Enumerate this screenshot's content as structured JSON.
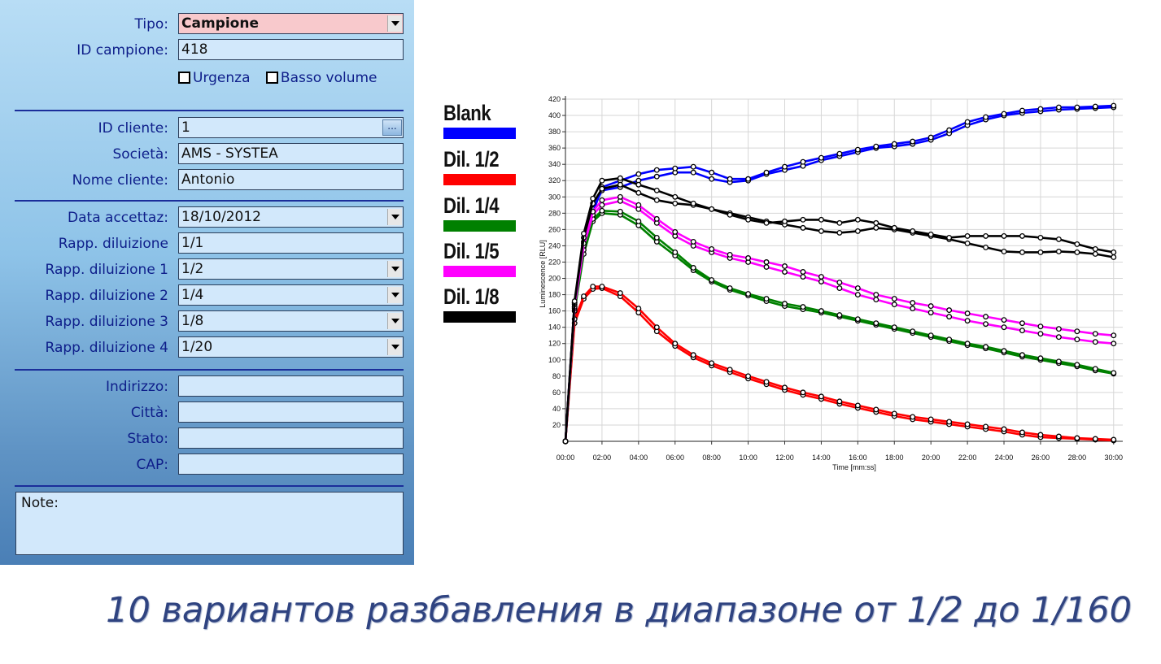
{
  "form": {
    "tipo": {
      "label": "Tipo:",
      "value": "Campione"
    },
    "id_campione": {
      "label": "ID campione:",
      "value": "418"
    },
    "checkboxes": {
      "urgenza": "Urgenza",
      "basso_volume": "Basso volume"
    },
    "id_cliente": {
      "label": "ID cliente:",
      "value": "1",
      "button": "..."
    },
    "societa": {
      "label": "Società:",
      "value": "AMS - SYSTEA"
    },
    "nome_cliente": {
      "label": "Nome cliente:",
      "value": "Antonio"
    },
    "data_accettaz": {
      "label": "Data accettaz:",
      "value": "18/10/2012"
    },
    "rapp_diluizione": {
      "label": "Rapp. diluizione",
      "value": "1/1"
    },
    "rapp_diluizione_1": {
      "label": "Rapp. diluizione 1",
      "value": "1/2"
    },
    "rapp_diluizione_2": {
      "label": "Rapp. diluizione 2",
      "value": "1/4"
    },
    "rapp_diluizione_3": {
      "label": "Rapp. diluizione 3",
      "value": "1/8"
    },
    "rapp_diluizione_4": {
      "label": "Rapp. diluizione 4",
      "value": "1/20"
    },
    "indirizzo": {
      "label": "Indirizzo:",
      "value": ""
    },
    "citta": {
      "label": "Città:",
      "value": ""
    },
    "stato": {
      "label": "Stato:",
      "value": ""
    },
    "cap": {
      "label": "CAP:",
      "value": ""
    },
    "note": {
      "label": "Note:"
    }
  },
  "legend": [
    {
      "label": "Blank",
      "color": "#0000ff"
    },
    {
      "label": "Dil. 1/2",
      "color": "#ff0000"
    },
    {
      "label": "Dil. 1/4",
      "color": "#008000"
    },
    {
      "label": "Dil. 1/5",
      "color": "#ff00ff"
    },
    {
      "label": "Dil. 1/8",
      "color": "#000000"
    }
  ],
  "caption": "10 вариантов разбавления в диапазоне от 1/2 до 1/160",
  "chart_data": {
    "type": "line",
    "xlabel": "Time [mm:ss]",
    "ylabel": "Luminescence [RLU]",
    "xlim": [
      0,
      30.5
    ],
    "ylim": [
      0,
      420
    ],
    "x_ticks": [
      "00:00",
      "02:00",
      "04:00",
      "06:00",
      "08:00",
      "10:00",
      "12:00",
      "14:00",
      "16:00",
      "18:00",
      "20:00",
      "22:00",
      "24:00",
      "26:00",
      "28:00",
      "30:00"
    ],
    "y_ticks": [
      20,
      40,
      60,
      80,
      100,
      120,
      140,
      160,
      180,
      200,
      220,
      240,
      260,
      280,
      300,
      320,
      340,
      360,
      380,
      400,
      420
    ],
    "grid": true,
    "series": [
      {
        "name": "Blank",
        "color": "#0000ff",
        "x": [
          0,
          0.5,
          1,
          1.5,
          2,
          3,
          4,
          5,
          6,
          7,
          8,
          9,
          10,
          11,
          12,
          13,
          14,
          15,
          16,
          17,
          18,
          19,
          20,
          21,
          22,
          23,
          24,
          25,
          26,
          27,
          28,
          29,
          30
        ],
        "y": [
          0,
          170,
          245,
          285,
          308,
          312,
          320,
          325,
          330,
          330,
          322,
          318,
          320,
          328,
          333,
          338,
          345,
          350,
          355,
          360,
          362,
          365,
          370,
          378,
          388,
          395,
          400,
          403,
          405,
          407,
          408,
          409,
          410
        ]
      },
      {
        "name": "Blank",
        "color": "#0000ff",
        "x": [
          0,
          0.5,
          1,
          1.5,
          2,
          3,
          4,
          5,
          6,
          7,
          8,
          9,
          10,
          11,
          12,
          13,
          14,
          15,
          16,
          17,
          18,
          19,
          20,
          21,
          22,
          23,
          24,
          25,
          26,
          27,
          28,
          29,
          30
        ],
        "y": [
          0,
          165,
          240,
          280,
          312,
          320,
          328,
          333,
          335,
          337,
          330,
          322,
          322,
          330,
          337,
          343,
          348,
          353,
          358,
          362,
          365,
          368,
          373,
          382,
          392,
          398,
          402,
          406,
          408,
          410,
          410,
          411,
          412
        ]
      },
      {
        "name": "Dil. 1/2",
        "color": "#ff0000",
        "x": [
          0,
          0.5,
          1,
          1.5,
          2,
          3,
          4,
          5,
          6,
          7,
          8,
          9,
          10,
          11,
          12,
          13,
          14,
          15,
          16,
          17,
          18,
          19,
          20,
          21,
          22,
          23,
          24,
          25,
          26,
          27,
          28,
          29,
          30
        ],
        "y": [
          0,
          145,
          175,
          187,
          188,
          178,
          158,
          135,
          117,
          103,
          93,
          85,
          77,
          70,
          63,
          57,
          52,
          46,
          41,
          36,
          31,
          27,
          24,
          21,
          18,
          15,
          12,
          8,
          5,
          4,
          3,
          2,
          1
        ]
      },
      {
        "name": "Dil. 1/2",
        "color": "#ff0000",
        "x": [
          0,
          0.5,
          1,
          1.5,
          2,
          3,
          4,
          5,
          6,
          7,
          8,
          9,
          10,
          11,
          12,
          13,
          14,
          15,
          16,
          17,
          18,
          19,
          20,
          21,
          22,
          23,
          24,
          25,
          26,
          27,
          28,
          29,
          30
        ],
        "y": [
          0,
          150,
          178,
          190,
          190,
          182,
          163,
          140,
          120,
          106,
          96,
          88,
          80,
          73,
          66,
          60,
          55,
          49,
          44,
          39,
          34,
          30,
          27,
          24,
          21,
          18,
          15,
          11,
          8,
          6,
          4,
          3,
          2
        ]
      },
      {
        "name": "Dil. 1/4",
        "color": "#008000",
        "x": [
          0,
          0.5,
          1,
          1.5,
          2,
          3,
          4,
          5,
          6,
          7,
          8,
          9,
          10,
          11,
          12,
          13,
          14,
          15,
          16,
          17,
          18,
          19,
          20,
          21,
          22,
          23,
          24,
          25,
          26,
          27,
          28,
          29,
          30
        ],
        "y": [
          0,
          160,
          230,
          270,
          280,
          278,
          265,
          245,
          228,
          210,
          196,
          186,
          179,
          172,
          166,
          162,
          158,
          153,
          148,
          143,
          138,
          133,
          128,
          123,
          118,
          114,
          109,
          104,
          100,
          96,
          92,
          87,
          83
        ]
      },
      {
        "name": "Dil. 1/4",
        "color": "#008000",
        "x": [
          0,
          0.5,
          1,
          1.5,
          2,
          3,
          4,
          5,
          6,
          7,
          8,
          9,
          10,
          11,
          12,
          13,
          14,
          15,
          16,
          17,
          18,
          19,
          20,
          21,
          22,
          23,
          24,
          25,
          26,
          27,
          28,
          29,
          30
        ],
        "y": [
          0,
          163,
          235,
          273,
          283,
          282,
          270,
          250,
          232,
          213,
          198,
          188,
          181,
          175,
          169,
          165,
          160,
          155,
          150,
          145,
          140,
          135,
          130,
          125,
          120,
          116,
          111,
          106,
          102,
          98,
          94,
          89,
          84
        ]
      },
      {
        "name": "Dil. 1/5",
        "color": "#ff00ff",
        "x": [
          0,
          0.5,
          1,
          1.5,
          2,
          3,
          4,
          5,
          6,
          7,
          8,
          9,
          10,
          11,
          12,
          13,
          14,
          15,
          16,
          17,
          18,
          19,
          20,
          21,
          22,
          23,
          24,
          25,
          26,
          27,
          28,
          29,
          30
        ],
        "y": [
          0,
          165,
          240,
          278,
          290,
          295,
          285,
          268,
          252,
          240,
          232,
          225,
          220,
          214,
          208,
          202,
          196,
          188,
          180,
          174,
          168,
          163,
          158,
          153,
          148,
          144,
          140,
          136,
          132,
          128,
          125,
          122,
          120
        ]
      },
      {
        "name": "Dil. 1/5",
        "color": "#ff00ff",
        "x": [
          0,
          0.5,
          1,
          1.5,
          2,
          3,
          4,
          5,
          6,
          7,
          8,
          9,
          10,
          11,
          12,
          13,
          14,
          15,
          16,
          17,
          18,
          19,
          20,
          21,
          22,
          23,
          24,
          25,
          26,
          27,
          28,
          29,
          30
        ],
        "y": [
          0,
          168,
          243,
          282,
          296,
          300,
          290,
          273,
          257,
          245,
          236,
          229,
          225,
          220,
          215,
          208,
          202,
          195,
          188,
          180,
          175,
          170,
          166,
          161,
          157,
          153,
          149,
          145,
          141,
          138,
          135,
          132,
          130
        ]
      },
      {
        "name": "Dil. 1/8",
        "color": "#000000",
        "x": [
          0,
          0.5,
          1,
          1.5,
          2,
          3,
          4,
          5,
          6,
          7,
          8,
          9,
          10,
          11,
          12,
          13,
          14,
          15,
          16,
          17,
          18,
          19,
          20,
          21,
          22,
          23,
          24,
          25,
          26,
          27,
          28,
          29,
          30
        ],
        "y": [
          0,
          170,
          250,
          292,
          310,
          315,
          305,
          296,
          292,
          290,
          285,
          280,
          275,
          270,
          266,
          262,
          258,
          256,
          258,
          262,
          260,
          256,
          252,
          248,
          243,
          238,
          233,
          232,
          232,
          233,
          232,
          230,
          226
        ]
      },
      {
        "name": "Dil. 1/8",
        "color": "#000000",
        "x": [
          0,
          0.5,
          1,
          1.5,
          2,
          3,
          4,
          5,
          6,
          7,
          8,
          9,
          10,
          11,
          12,
          13,
          14,
          15,
          16,
          17,
          18,
          19,
          20,
          21,
          22,
          23,
          24,
          25,
          26,
          27,
          28,
          29,
          30
        ],
        "y": [
          0,
          172,
          255,
          298,
          320,
          323,
          315,
          308,
          300,
          292,
          285,
          278,
          272,
          268,
          270,
          272,
          272,
          268,
          272,
          268,
          262,
          258,
          254,
          250,
          252,
          252,
          252,
          252,
          250,
          248,
          242,
          236,
          232
        ]
      }
    ]
  }
}
